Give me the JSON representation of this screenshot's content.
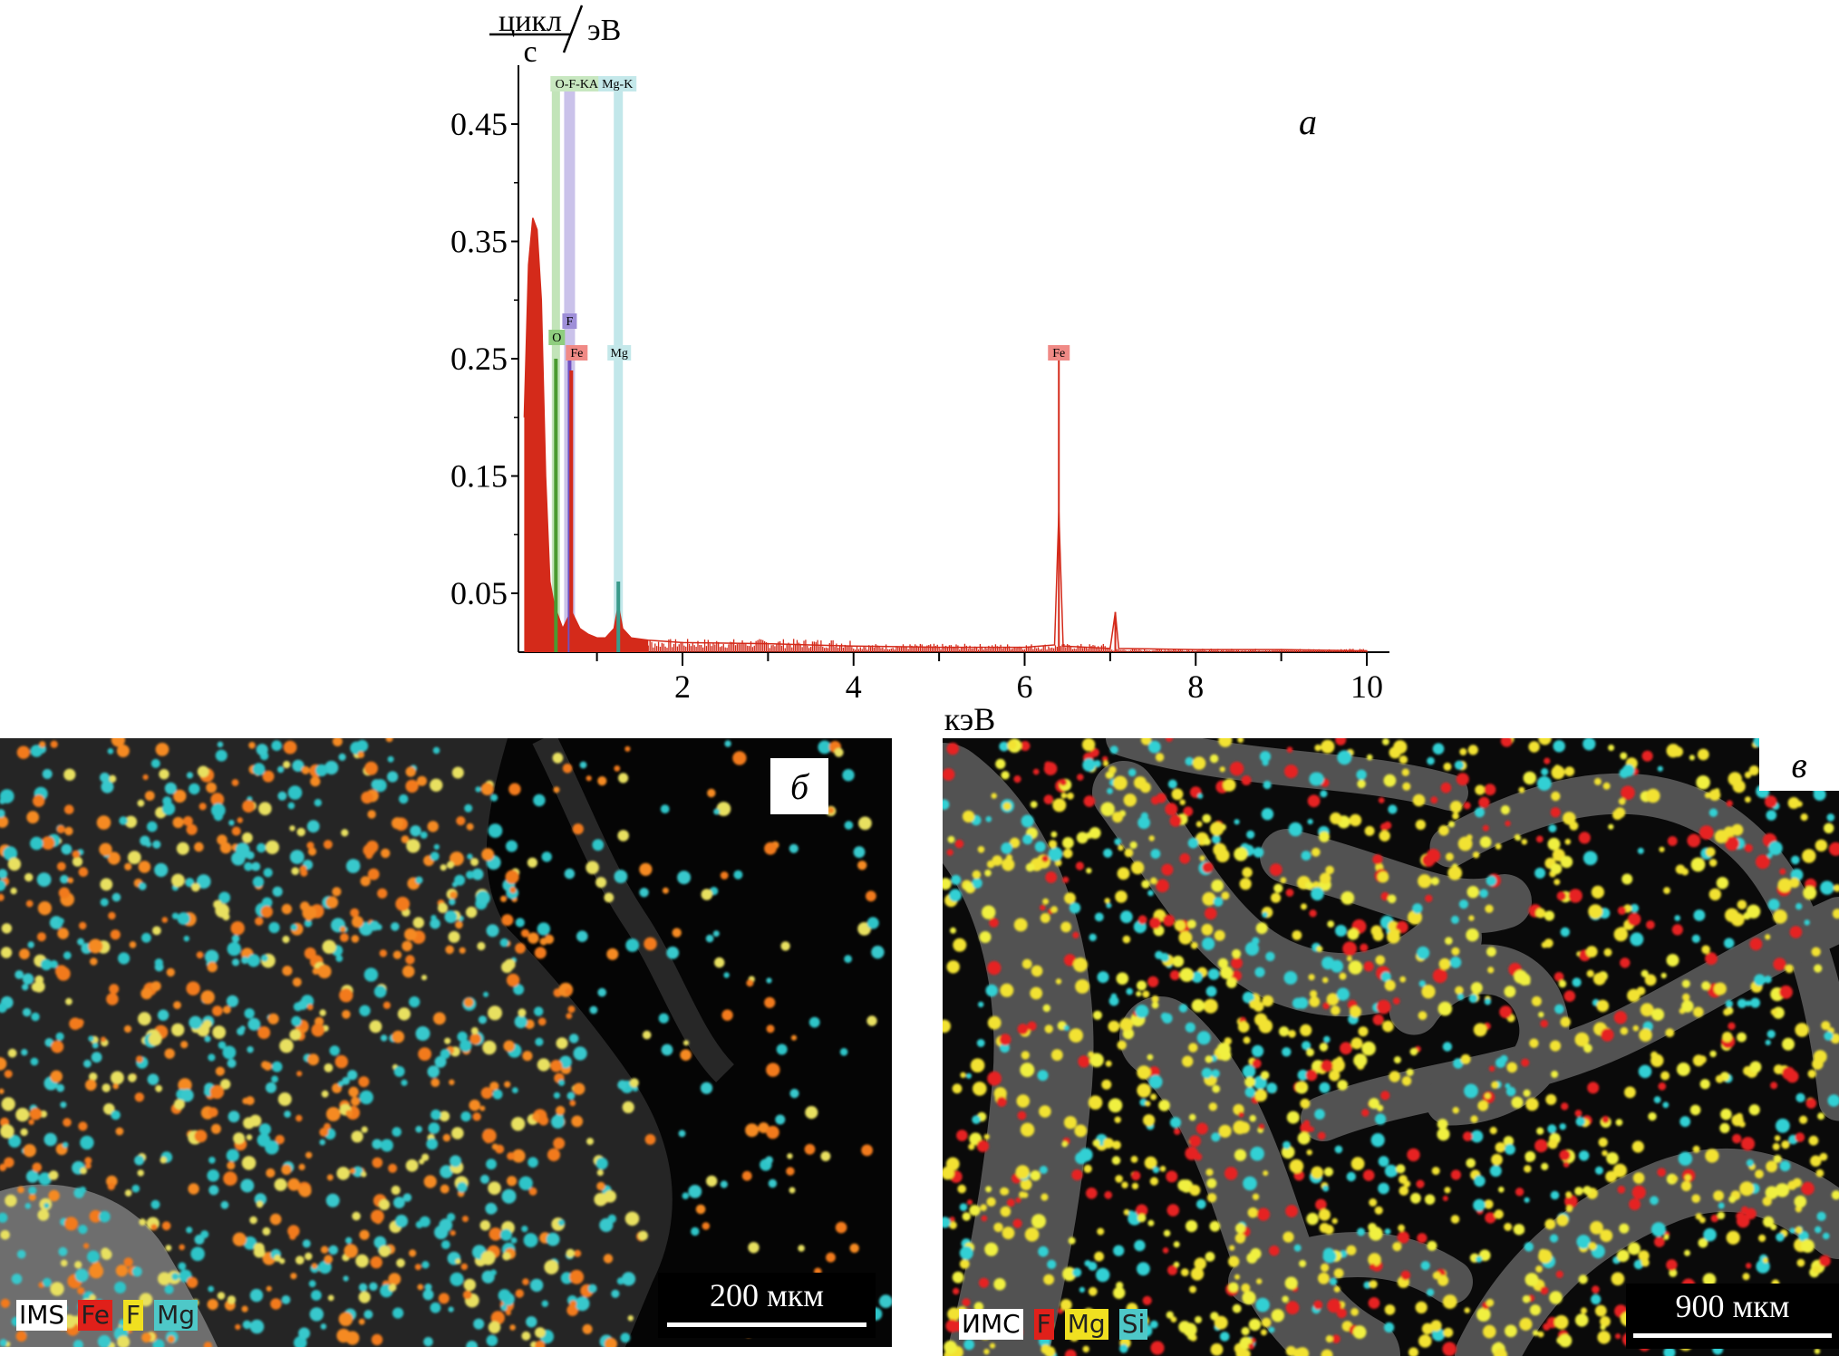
{
  "panel_a": {
    "letter": "a",
    "ylabel_numerator": "цикл",
    "ylabel_denominator": "с",
    "ylabel_unit": "эВ",
    "xlabel": "кэВ",
    "yticks": [
      "0.45",
      "0.35",
      "0.25",
      "0.15",
      "0.05"
    ],
    "xticks": [
      "2",
      "4",
      "6",
      "8",
      "10"
    ],
    "peak_tags": [
      "O-F-KA",
      "Mg-K",
      "F",
      "O",
      "Fe",
      "Mg",
      "Fe"
    ],
    "colors": {
      "spectrum": "#d42a1a",
      "O": "#8fce7f",
      "F": "#9e8fd8",
      "Fe": "#f08a86",
      "Mg": "#8fd3d8"
    }
  },
  "panel_b": {
    "letter": "б",
    "legend": [
      "IMS",
      "Fe",
      "F",
      "Mg"
    ],
    "legend_colors": [
      "#ffffff",
      "#e0201a",
      "#f0e020",
      "#4ec8c8"
    ],
    "scalebar": "200 мкм"
  },
  "panel_v": {
    "letter": "в",
    "legend": [
      "ИМС",
      "F",
      "Mg",
      "Si"
    ],
    "legend_colors": [
      "#ffffff",
      "#e0201a",
      "#f0e020",
      "#4ec8c8"
    ],
    "scalebar": "900 мкм"
  },
  "chart_data": {
    "type": "line",
    "title": "",
    "xlabel": "кэВ",
    "ylabel": "цикл/с/эВ",
    "xlim": [
      0,
      10.2
    ],
    "ylim": [
      0,
      0.5
    ],
    "xticks": [
      2,
      4,
      6,
      8,
      10
    ],
    "yticks": [
      0.05,
      0.15,
      0.25,
      0.35,
      0.45
    ],
    "grid": false,
    "peaks": [
      {
        "element": "O",
        "line": "K",
        "x": 0.52,
        "y": 0.25
      },
      {
        "element": "F",
        "line": "K",
        "x": 0.68,
        "y": 0.26
      },
      {
        "element": "Fe",
        "line": "L",
        "x": 0.7,
        "y": 0.24
      },
      {
        "element": "Mg",
        "line": "K",
        "x": 1.25,
        "y": 0.06
      },
      {
        "element": "Fe",
        "line": "K",
        "x": 6.4,
        "y": 0.25
      }
    ],
    "series": [
      {
        "color": "#d42a1a",
        "x": [
          0.15,
          0.2,
          0.25,
          0.3,
          0.35,
          0.4,
          0.45,
          0.5,
          0.55,
          0.6,
          0.7,
          0.8,
          0.9,
          1.0,
          1.1,
          1.2,
          1.25,
          1.3,
          1.4,
          1.6,
          2.0,
          3.0,
          4.0,
          5.0,
          6.0,
          6.35,
          6.4,
          6.45,
          7.0,
          7.06,
          7.1,
          8.0,
          9.0,
          10.0
        ],
        "y": [
          0.2,
          0.33,
          0.37,
          0.36,
          0.3,
          0.15,
          0.06,
          0.04,
          0.03,
          0.02,
          0.035,
          0.02,
          0.015,
          0.012,
          0.012,
          0.02,
          0.04,
          0.02,
          0.012,
          0.01,
          0.008,
          0.007,
          0.005,
          0.004,
          0.004,
          0.006,
          0.12,
          0.005,
          0.003,
          0.034,
          0.003,
          0.002,
          0.002,
          0.001
        ]
      }
    ]
  }
}
